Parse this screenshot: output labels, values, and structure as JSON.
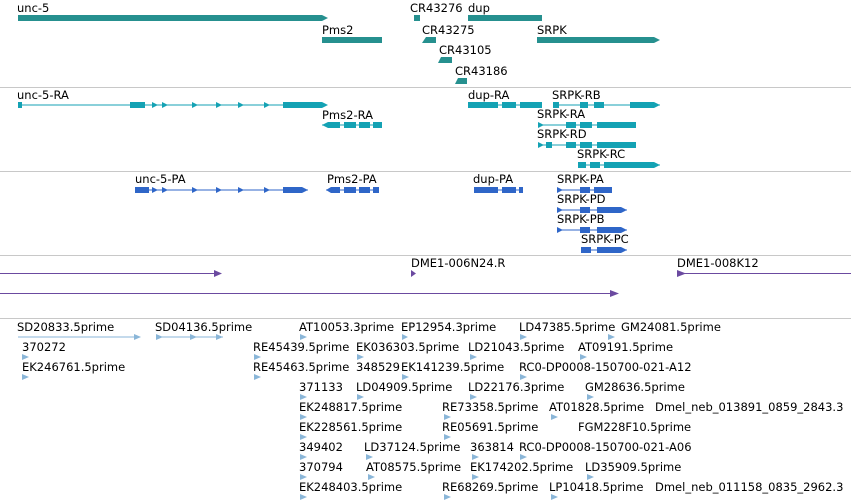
{
  "colors": {
    "gene": "#26908f",
    "transcript": "#14a2b4",
    "protein": "#2f66c8",
    "clone": "#6b4aa0",
    "est": "#8ab6d8",
    "divider": "#c8c8c8"
  },
  "tracks": {
    "genes": {
      "labels": [
        "unc-5",
        "Pms2",
        "CR43276",
        "dup",
        "CR43275",
        "SRPK",
        "CR43105",
        "CR43186"
      ]
    },
    "transcripts": {
      "labels": [
        "unc-5-RA",
        "Pms2-RA",
        "dup-RA",
        "SRPK-RB",
        "SRPK-RA",
        "SRPK-RD",
        "SRPK-RC"
      ]
    },
    "proteins": {
      "labels": [
        "unc-5-PA",
        "Pms2-PA",
        "dup-PA",
        "SRPK-PA",
        "SRPK-PD",
        "SRPK-PB",
        "SRPK-PC"
      ]
    },
    "clones": {
      "labels": [
        "DME1-006N24.R",
        "DME1-008K12"
      ]
    },
    "ests": {
      "labels": [
        "SD20833.5prime",
        "SD04136.5prime",
        "AT10053.3prime",
        "EP12954.3prime",
        "LD47385.5prime",
        "GM24081.5prime",
        "370272",
        "RE45439.5prime",
        "EK036303.5prime",
        "LD21043.5prime",
        "AT09191.5prime",
        "EK246761.5prime",
        "RE45463.5prime",
        "348529",
        "EK141239.5prime",
        "RC0-DP0008-150700-021-A12",
        "371133",
        "LD04909.5prime",
        "LD22176.3prime",
        "GM28636.5prime",
        "EK248817.5prime",
        "RE73358.5prime",
        "AT01828.5prime",
        "Dmel_neb_013891_0859_2843.3",
        "EK228561.5prime",
        "RE05691.5prime",
        "FGM228F10.5prime",
        "349402",
        "LD37124.5prime",
        "363814",
        "RC0-DP0008-150700-021-A06",
        "370794",
        "AT08575.5prime",
        "EK174202.5prime",
        "LD35909.5prime",
        "EK248403.5prime",
        "RE68269.5prime",
        "LP10418.5prime",
        "Dmel_neb_011158_0835_2962.3"
      ]
    }
  }
}
